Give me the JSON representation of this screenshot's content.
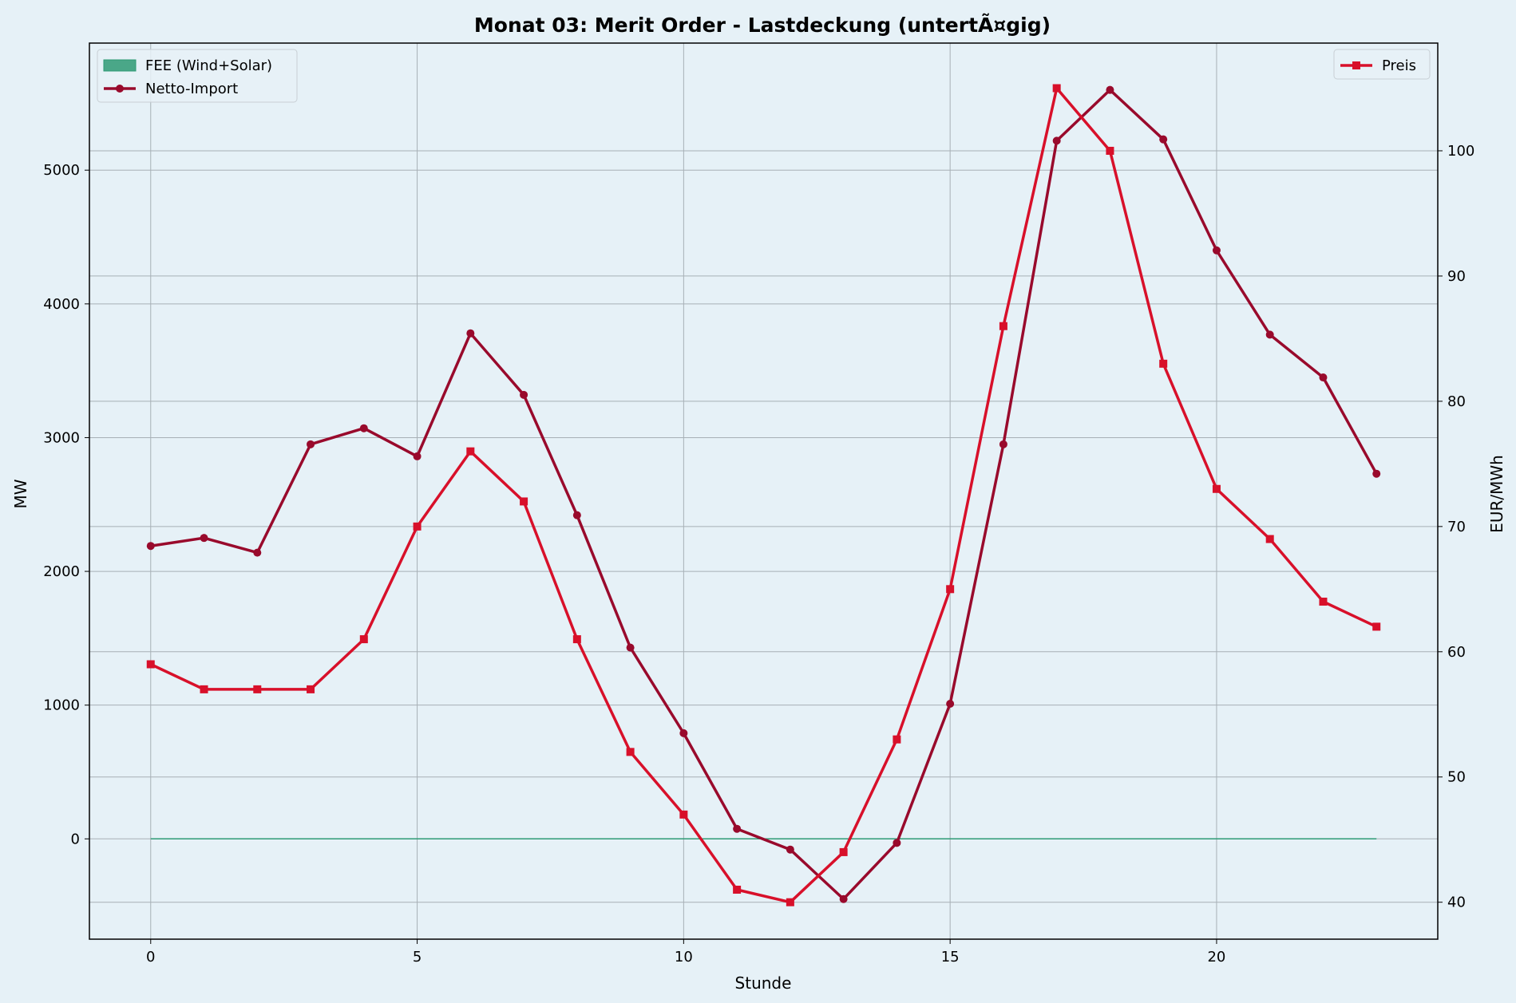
{
  "chart_data": {
    "type": "line",
    "title": "Monat 03: Merit Order - Lastdeckung (untertÃ¤gig)",
    "xlabel": "Stunde",
    "ylabel": "MW",
    "ylabel_right": "EUR/MWh",
    "xlim": [
      -1.15,
      24.15
    ],
    "ylim": [
      -750,
      5950
    ],
    "ylim_right": [
      37.05,
      108.6
    ],
    "xticks": [
      0,
      5,
      10,
      15,
      20
    ],
    "yticks": [
      0,
      1000,
      2000,
      3000,
      4000,
      5000
    ],
    "yticks_right": [
      40,
      50,
      60,
      70,
      80,
      90,
      100
    ],
    "x": [
      0,
      1,
      2,
      3,
      4,
      5,
      6,
      7,
      8,
      9,
      10,
      11,
      12,
      13,
      14,
      15,
      16,
      17,
      18,
      19,
      20,
      21,
      22,
      23
    ],
    "grid": true,
    "legend_left_position": "top-left",
    "legend_right_position": "top-right",
    "series": [
      {
        "name": "FEE (Wind+Solar)",
        "kind": "area",
        "axis": "left",
        "color": "#2e9a74",
        "values": [
          0,
          0,
          0,
          0,
          0,
          0,
          0,
          0,
          0,
          0,
          0,
          0,
          0,
          0,
          0,
          0,
          0,
          0,
          0,
          0,
          0,
          0,
          0,
          0
        ]
      },
      {
        "name": "Netto-Import",
        "kind": "line",
        "axis": "left",
        "marker": "circle",
        "color": "#990a2c",
        "values": [
          2190,
          2250,
          2140,
          2950,
          3070,
          2860,
          3780,
          3320,
          2420,
          1430,
          790,
          75,
          -80,
          -450,
          -30,
          1010,
          2950,
          5220,
          5600,
          5230,
          4400,
          3770,
          3450,
          2730
        ]
      },
      {
        "name": "Preis",
        "kind": "line",
        "axis": "right",
        "marker": "square",
        "color": "#d8102a",
        "values": [
          59,
          57,
          57,
          57,
          61,
          70,
          76,
          72,
          61,
          52,
          47,
          41,
          40,
          44,
          53,
          65,
          86,
          105,
          100,
          83,
          73,
          69,
          64,
          62
        ]
      }
    ]
  }
}
